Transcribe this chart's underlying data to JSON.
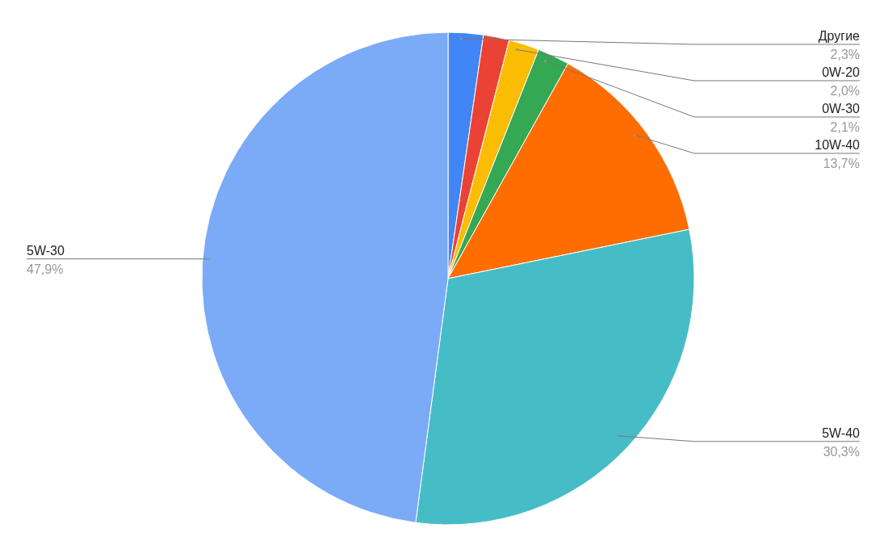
{
  "chart_data": {
    "type": "pie",
    "categories": [
      "Другие",
      null,
      "0W-20",
      "0W-30",
      "10W-40",
      "5W-40",
      "5W-30"
    ],
    "values": [
      2.3,
      1.7,
      2.0,
      2.1,
      13.7,
      30.3,
      47.9
    ],
    "value_labels": [
      "2,3%",
      null,
      "2,0%",
      "2,1%",
      "13,7%",
      "30,3%",
      "47,9%"
    ],
    "colors": [
      "#4285f4",
      "#ea4335",
      "#fbbc04",
      "#34a853",
      "#ff6d01",
      "#46bdc6",
      "#7baaf7"
    ],
    "legend": false
  }
}
